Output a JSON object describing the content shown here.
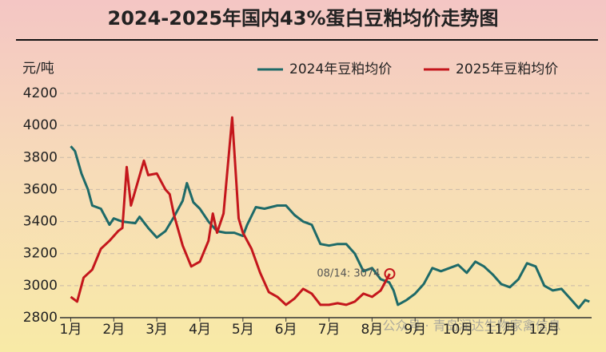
{
  "chart_data": {
    "type": "line",
    "title": "2024-2025年国内43%蛋白豆粕均价走势图",
    "y_label": "元/吨",
    "xlim": [
      0.75,
      13.1
    ],
    "xticks": [
      {
        "value": 1,
        "label": "1月"
      },
      {
        "value": 2,
        "label": "2月"
      },
      {
        "value": 3,
        "label": "3月"
      },
      {
        "value": 4,
        "label": "4月"
      },
      {
        "value": 5,
        "label": "5月"
      },
      {
        "value": 6,
        "label": "6月"
      },
      {
        "value": 7,
        "label": "7月"
      },
      {
        "value": 8,
        "label": "8月"
      },
      {
        "value": 9,
        "label": "9月"
      },
      {
        "value": 10,
        "label": "10月"
      },
      {
        "value": 11,
        "label": "11月"
      },
      {
        "value": 12,
        "label": "12月"
      }
    ],
    "ylim": [
      2800,
      4200
    ],
    "yticks": [
      2800,
      3000,
      3200,
      3400,
      3600,
      3800,
      4000,
      4200
    ],
    "grid": true,
    "series": [
      {
        "name": "2024年豆粕均价",
        "color": "#1e6a68",
        "x": [
          1.0,
          1.1,
          1.25,
          1.4,
          1.5,
          1.7,
          1.9,
          2.0,
          2.2,
          2.5,
          2.6,
          2.8,
          3.0,
          3.2,
          3.4,
          3.6,
          3.7,
          3.85,
          4.0,
          4.2,
          4.4,
          4.6,
          4.8,
          5.0,
          5.1,
          5.3,
          5.5,
          5.8,
          6.0,
          6.2,
          6.4,
          6.6,
          6.8,
          7.0,
          7.2,
          7.4,
          7.6,
          7.8,
          8.0,
          8.2,
          8.4,
          8.5,
          8.6,
          8.8,
          9.0,
          9.2,
          9.4,
          9.6,
          9.8,
          10.0,
          10.2,
          10.4,
          10.6,
          10.8,
          11.0,
          11.2,
          11.4,
          11.6,
          11.8,
          12.0,
          12.2,
          12.4,
          12.6,
          12.8,
          12.95,
          13.05
        ],
        "values": [
          3870,
          3840,
          3700,
          3600,
          3500,
          3480,
          3380,
          3420,
          3400,
          3390,
          3430,
          3360,
          3300,
          3340,
          3430,
          3530,
          3640,
          3520,
          3480,
          3400,
          3340,
          3330,
          3330,
          3310,
          3380,
          3490,
          3480,
          3500,
          3500,
          3440,
          3400,
          3380,
          3260,
          3250,
          3260,
          3260,
          3200,
          3090,
          3110,
          3040,
          3020,
          2970,
          2880,
          2910,
          2950,
          3010,
          3110,
          3090,
          3110,
          3130,
          3080,
          3150,
          3120,
          3070,
          3010,
          2990,
          3040,
          3140,
          3120,
          3000,
          2970,
          2980,
          2920,
          2860,
          2910,
          2900
        ]
      },
      {
        "name": "2025年豆粕均价",
        "color": "#c4161c",
        "x": [
          1.0,
          1.15,
          1.3,
          1.5,
          1.7,
          1.9,
          2.1,
          2.2,
          2.3,
          2.4,
          2.55,
          2.7,
          2.8,
          3.0,
          3.2,
          3.3,
          3.4,
          3.6,
          3.8,
          4.0,
          4.2,
          4.3,
          4.4,
          4.55,
          4.75,
          4.9,
          5.0,
          5.2,
          5.4,
          5.6,
          5.8,
          6.0,
          6.2,
          6.4,
          6.6,
          6.8,
          7.0,
          7.2,
          7.4,
          7.6,
          7.8,
          8.0,
          8.2,
          8.41
        ],
        "values": [
          2930,
          2900,
          3050,
          3100,
          3230,
          3280,
          3340,
          3360,
          3740,
          3500,
          3640,
          3780,
          3690,
          3700,
          3600,
          3570,
          3440,
          3250,
          3120,
          3150,
          3280,
          3450,
          3330,
          3450,
          4050,
          3420,
          3330,
          3230,
          3080,
          2960,
          2930,
          2880,
          2920,
          2980,
          2950,
          2880,
          2880,
          2890,
          2880,
          2900,
          2950,
          2930,
          2970,
          3074
        ]
      }
    ],
    "annotations": [
      {
        "text": "08/14: 3074"
      }
    ],
    "watermark": "公众号 · 青岛润达生物家禽信息"
  }
}
